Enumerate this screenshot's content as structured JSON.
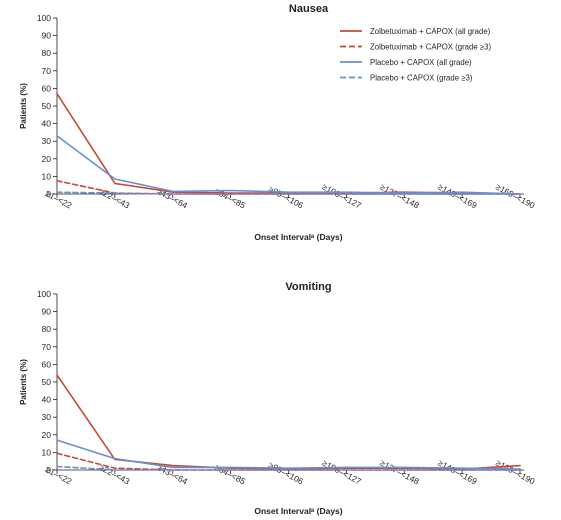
{
  "colors": {
    "red": "#c8493b",
    "blue": "#6a8fce",
    "axis": "#231f20"
  },
  "legend": [
    {
      "label": "Zolbetuximab + CAPOX (all grade)",
      "color": "#c8493b",
      "dashed": false
    },
    {
      "label": "Zolbetuximab + CAPOX (grade ≥3)",
      "color": "#c8493b",
      "dashed": true
    },
    {
      "label": "Placebo + CAPOX (all grade)",
      "color": "#6a8fce",
      "dashed": false
    },
    {
      "label": "Placebo + CAPOX (grade ≥3)",
      "color": "#6a8fce",
      "dashed": true
    }
  ],
  "chart_data": [
    {
      "type": "line",
      "title": "Nausea",
      "xlabel": "Onset Intervalᵃ (Days)",
      "ylabel": "Patients (%)",
      "ylim": [
        0,
        100
      ],
      "yticks": [
        0,
        10,
        20,
        30,
        40,
        50,
        60,
        70,
        80,
        90,
        100
      ],
      "categories": [
        "≥1–<22",
        "≥22–<43",
        "≥43–<64",
        "≥64–<85",
        "≥85–<106",
        "≥106–<127",
        "≥127–<148",
        "≥148–<169",
        "≥169–<190"
      ],
      "legend_position": "top-right",
      "series": [
        {
          "name": "Zolbetuximab + CAPOX (all grade)",
          "color": "#c8493b",
          "dashed": false,
          "values": [
            57,
            6,
            1,
            0.5,
            0.5,
            0.5,
            1,
            0.5,
            0
          ]
        },
        {
          "name": "Zolbetuximab + CAPOX (grade ≥3)",
          "color": "#c8493b",
          "dashed": true,
          "values": [
            7.5,
            0.5,
            0,
            0,
            0,
            0,
            0,
            0,
            0
          ]
        },
        {
          "name": "Placebo + CAPOX (all grade)",
          "color": "#6a8fce",
          "dashed": false,
          "values": [
            33,
            8.5,
            1.5,
            2,
            1,
            1,
            0.5,
            1,
            0
          ]
        },
        {
          "name": "Placebo + CAPOX (grade ≥3)",
          "color": "#6a8fce",
          "dashed": true,
          "values": [
            1,
            0.5,
            0,
            0,
            0,
            0,
            0,
            0,
            0
          ]
        }
      ]
    },
    {
      "type": "line",
      "title": "Vomiting",
      "xlabel": "Onset Intervalᵃ (Days)",
      "ylabel": "Patients (%)",
      "ylim": [
        0,
        100
      ],
      "yticks": [
        0,
        10,
        20,
        30,
        40,
        50,
        60,
        70,
        80,
        90,
        100
      ],
      "categories": [
        "≥1–<22",
        "≥22–<43",
        "≥43–<64",
        "≥64–<85",
        "≥85–<106",
        "≥106–<127",
        "≥127–<148",
        "≥148–<169",
        "≥169–<190"
      ],
      "series": [
        {
          "name": "Zolbetuximab + CAPOX (all grade)",
          "color": "#c8493b",
          "dashed": false,
          "values": [
            54,
            6,
            2.5,
            1,
            0.5,
            1,
            1,
            0.5,
            2.5
          ]
        },
        {
          "name": "Zolbetuximab + CAPOX (grade ≥3)",
          "color": "#c8493b",
          "dashed": true,
          "values": [
            9.5,
            1,
            0,
            0,
            0,
            0,
            0,
            0,
            0
          ]
        },
        {
          "name": "Placebo + CAPOX (all grade)",
          "color": "#6a8fce",
          "dashed": false,
          "values": [
            17,
            6.5,
            1.5,
            1.5,
            1,
            1.5,
            1.5,
            1,
            0.5
          ]
        },
        {
          "name": "Placebo + CAPOX (grade ≥3)",
          "color": "#6a8fce",
          "dashed": true,
          "values": [
            2,
            0,
            0,
            0,
            0,
            0,
            0,
            0,
            0
          ]
        }
      ]
    }
  ]
}
